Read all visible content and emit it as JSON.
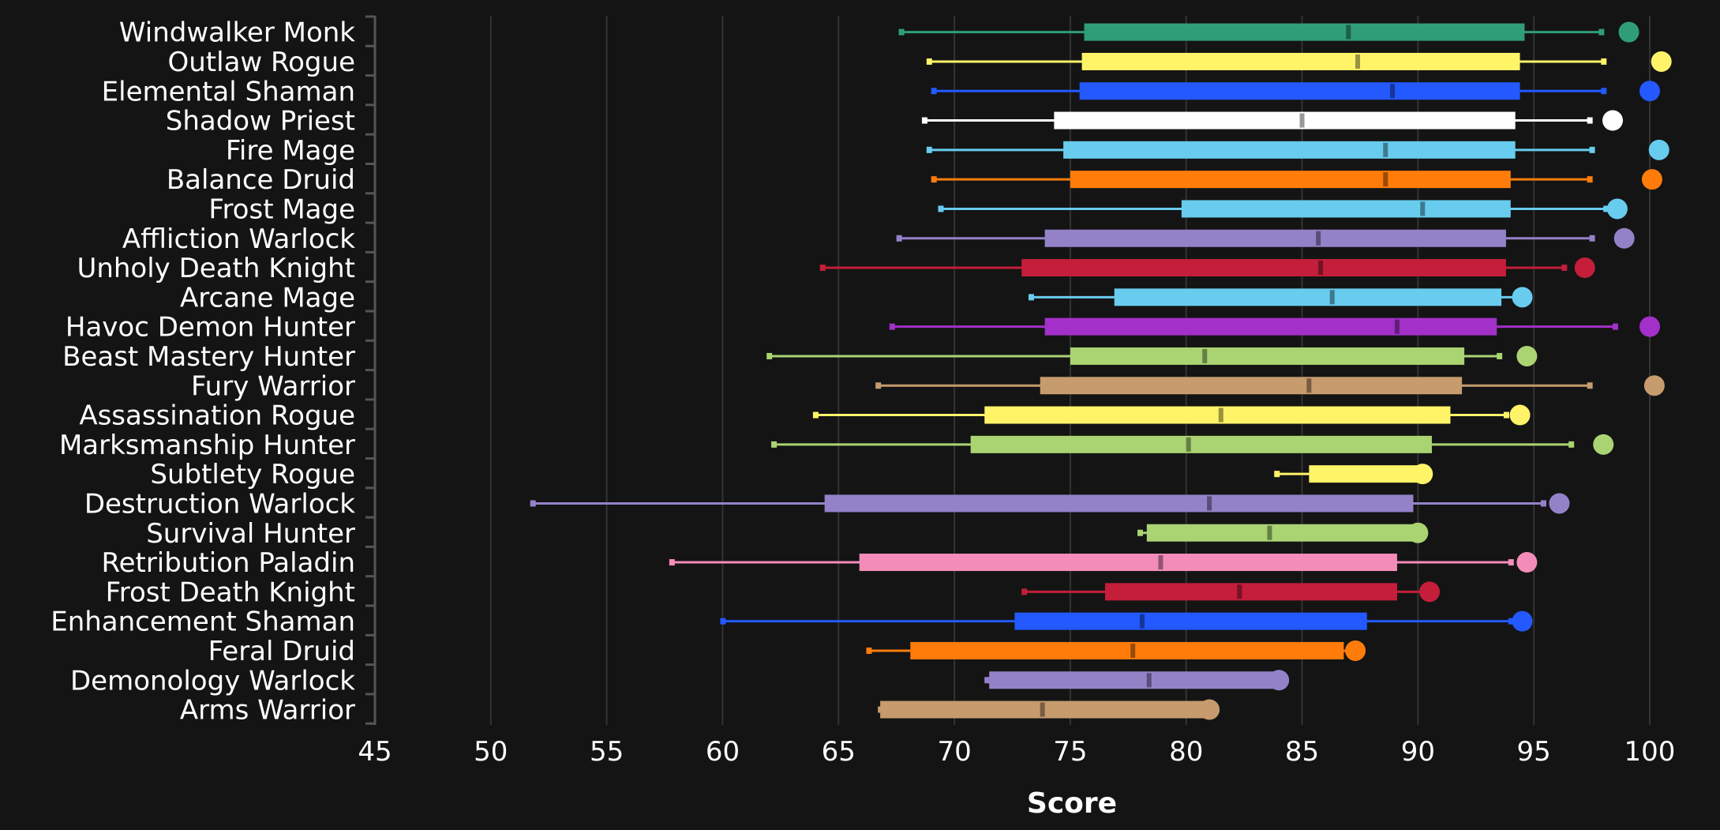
{
  "chart_data": {
    "type": "box",
    "title": "",
    "xlabel": "Score",
    "ylabel": "",
    "xlim": [
      45,
      100
    ],
    "xticks": [
      45,
      50,
      55,
      60,
      65,
      70,
      75,
      80,
      85,
      90,
      95,
      100
    ],
    "grid": "vertical",
    "legend": "none",
    "series": [
      {
        "category": "Windwalker Monk",
        "color": "#2f9e78",
        "whisker_low": 67.7,
        "q1": 75.6,
        "median": 87.0,
        "q3": 94.6,
        "whisker_high": 97.9,
        "max_point": 99.1
      },
      {
        "category": "Outlaw Rogue",
        "color": "#fff468",
        "whisker_low": 68.9,
        "q1": 75.5,
        "median": 87.4,
        "q3": 94.4,
        "whisker_high": 98.0,
        "max_point": 100.5
      },
      {
        "category": "Elemental Shaman",
        "color": "#2359ff",
        "whisker_low": 69.1,
        "q1": 75.4,
        "median": 88.9,
        "q3": 94.4,
        "whisker_high": 98.0,
        "max_point": 100.0
      },
      {
        "category": "Shadow Priest",
        "color": "#ffffff",
        "whisker_low": 68.7,
        "q1": 74.3,
        "median": 85.0,
        "q3": 94.2,
        "whisker_high": 97.4,
        "max_point": 98.4
      },
      {
        "category": "Fire Mage",
        "color": "#68ccef",
        "whisker_low": 68.9,
        "q1": 74.7,
        "median": 88.6,
        "q3": 94.2,
        "whisker_high": 97.5,
        "max_point": 100.4
      },
      {
        "category": "Balance Druid",
        "color": "#ff7c0a",
        "whisker_low": 69.1,
        "q1": 75.0,
        "median": 88.6,
        "q3": 94.0,
        "whisker_high": 97.4,
        "max_point": 100.1
      },
      {
        "category": "Frost Mage",
        "color": "#68ccef",
        "whisker_low": 69.4,
        "q1": 79.8,
        "median": 90.2,
        "q3": 94.0,
        "whisker_high": 98.1,
        "max_point": 98.6
      },
      {
        "category": "Affliction Warlock",
        "color": "#9482c9",
        "whisker_low": 67.6,
        "q1": 73.9,
        "median": 85.7,
        "q3": 93.8,
        "whisker_high": 97.5,
        "max_point": 98.9
      },
      {
        "category": "Unholy Death Knight",
        "color": "#c41e3a",
        "whisker_low": 64.3,
        "q1": 72.9,
        "median": 85.8,
        "q3": 93.8,
        "whisker_high": 96.3,
        "max_point": 97.2
      },
      {
        "category": "Arcane Mage",
        "color": "#68ccef",
        "whisker_low": 73.3,
        "q1": 76.9,
        "median": 86.3,
        "q3": 93.6,
        "whisker_high": 94.2,
        "max_point": 94.5
      },
      {
        "category": "Havoc Demon Hunter",
        "color": "#a330c9",
        "whisker_low": 67.3,
        "q1": 73.9,
        "median": 89.1,
        "q3": 93.4,
        "whisker_high": 98.5,
        "max_point": 100.0
      },
      {
        "category": "Beast Mastery Hunter",
        "color": "#aad372",
        "whisker_low": 62.0,
        "q1": 75.0,
        "median": 80.8,
        "q3": 92.0,
        "whisker_high": 93.5,
        "max_point": 94.7
      },
      {
        "category": "Fury Warrior",
        "color": "#c69b6d",
        "whisker_low": 66.7,
        "q1": 73.7,
        "median": 85.3,
        "q3": 91.9,
        "whisker_high": 97.4,
        "max_point": 100.2
      },
      {
        "category": "Assassination Rogue",
        "color": "#fff468",
        "whisker_low": 64.0,
        "q1": 71.3,
        "median": 81.5,
        "q3": 91.4,
        "whisker_high": 93.8,
        "max_point": 94.4
      },
      {
        "category": "Marksmanship Hunter",
        "color": "#aad372",
        "whisker_low": 62.2,
        "q1": 70.7,
        "median": 80.1,
        "q3": 90.6,
        "whisker_high": 96.6,
        "max_point": 98.0
      },
      {
        "category": "Subtlety Rogue",
        "color": "#fff468",
        "whisker_low": 83.9,
        "q1": 85.3,
        "median": 90.0,
        "q3": 90.1,
        "whisker_high": 90.1,
        "max_point": 90.2
      },
      {
        "category": "Destruction Warlock",
        "color": "#9482c9",
        "whisker_low": 51.8,
        "q1": 64.4,
        "median": 81.0,
        "q3": 89.8,
        "whisker_high": 95.4,
        "max_point": 96.1
      },
      {
        "category": "Survival Hunter",
        "color": "#aad372",
        "whisker_low": 78.0,
        "q1": 78.3,
        "median": 83.6,
        "q3": 89.8,
        "whisker_high": 89.9,
        "max_point": 90.0
      },
      {
        "category": "Retribution Paladin",
        "color": "#f48cba",
        "whisker_low": 57.8,
        "q1": 65.9,
        "median": 78.9,
        "q3": 89.1,
        "whisker_high": 94.0,
        "max_point": 94.7
      },
      {
        "category": "Frost Death Knight",
        "color": "#c41e3a",
        "whisker_low": 73.0,
        "q1": 76.5,
        "median": 82.3,
        "q3": 89.1,
        "whisker_high": 90.3,
        "max_point": 90.5
      },
      {
        "category": "Enhancement Shaman",
        "color": "#2359ff",
        "whisker_low": 60.0,
        "q1": 72.6,
        "median": 78.1,
        "q3": 87.8,
        "whisker_high": 94.0,
        "max_point": 94.5
      },
      {
        "category": "Feral Druid",
        "color": "#ff7c0a",
        "whisker_low": 66.3,
        "q1": 68.1,
        "median": 77.7,
        "q3": 86.8,
        "whisker_high": 87.2,
        "max_point": 87.3
      },
      {
        "category": "Demonology Warlock",
        "color": "#9482c9",
        "whisker_low": 71.4,
        "q1": 71.5,
        "median": 78.4,
        "q3": 83.8,
        "whisker_high": 83.9,
        "max_point": 84.0
      },
      {
        "category": "Arms Warrior",
        "color": "#c69b6d",
        "whisker_low": 66.8,
        "q1": 66.8,
        "median": 73.8,
        "q3": 80.8,
        "whisker_high": 80.9,
        "max_point": 81.0
      }
    ]
  }
}
